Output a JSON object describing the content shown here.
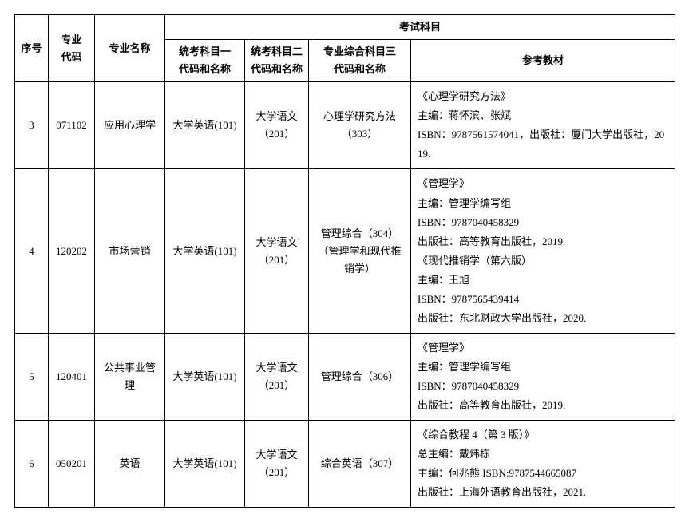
{
  "header": {
    "seq": "序号",
    "major_code": "专业\n代码",
    "major_name": "专业名称",
    "exam_subjects": "考试科目",
    "subj1": "统考科目一\n代码和名称",
    "subj2": "统考科目二\n代码和名称",
    "subj3": "专业综合科目三\n代码和名称",
    "reference": "参考教材"
  },
  "rows": [
    {
      "seq": "3",
      "major_code": "071102",
      "major_name": "应用心理学",
      "subj1": "大学英语(101)",
      "subj2": "大学语文\n（201）",
      "subj3": "心理学研究方法\n（303）",
      "reference": "《心理学研究方法》\n主编：蒋怀滨、张斌\nISBN：9787561574041，出版社：厦门大学出版社，2019."
    },
    {
      "seq": "4",
      "major_code": "120202",
      "major_name": "市场营销",
      "subj1": "大学英语(101)",
      "subj2": "大学语文\n（201）",
      "subj3": "管理综合（304）\n（管理学和现代推销学）",
      "reference": "《管理学》\n主编：管理学编写组\nISBN：9787040458329\n出版社：高等教育出版社，2019.\n《现代推销学（第六版）\n主编：王旭\nISBN：9787565439414\n出版社：东北财政大学出版社，2020."
    },
    {
      "seq": "5",
      "major_code": "120401",
      "major_name": "公共事业管理",
      "subj1": "大学英语(101)",
      "subj2": "大学语文\n（201）",
      "subj3": "管理综合（306）",
      "reference": "《管理学》\n主编：管理学编写组\nISBN：9787040458329\n出版社：高等教育出版社，2019."
    },
    {
      "seq": "6",
      "major_code": "050201",
      "major_name": "英语",
      "subj1": "大学英语(101)",
      "subj2": "大学语文\n（201）",
      "subj3": "综合英语（307）",
      "reference": "《综合教程 4（第 3 版）》\n总主编：戴炜栋\n主编：何兆熊 ISBN:9787544665087\n出版社：上海外语教育出版社，2021."
    }
  ]
}
